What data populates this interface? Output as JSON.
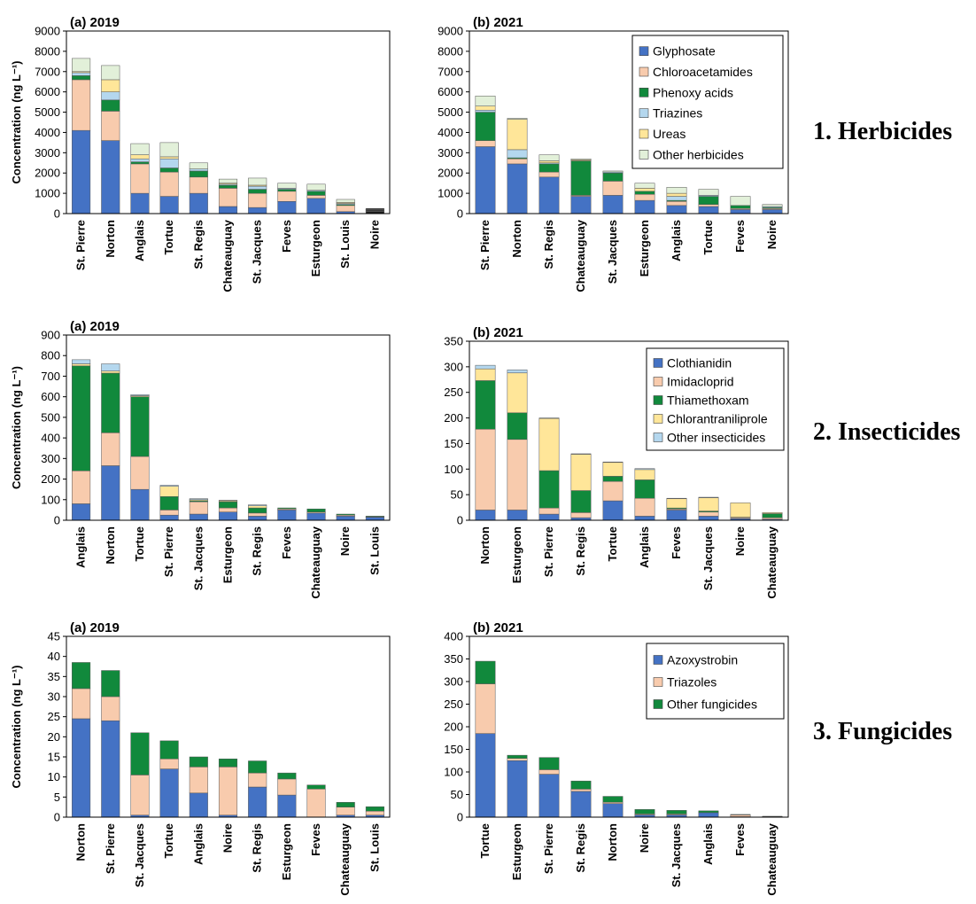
{
  "colors": {
    "blue": "#4472C4",
    "peach": "#F8CBAD",
    "green": "#11893C",
    "lightblue": "#B4D7EE",
    "yellow": "#FFE699",
    "palegreen": "#E2F0D9",
    "dark": "#1F1F1F"
  },
  "row_labels": [
    "1. Herbicides",
    "2. Insecticides",
    "3. Fungicides"
  ],
  "chart_data": [
    {
      "type": "bar",
      "stacked": true,
      "title": "(a) 2019",
      "ylabel": "Concentration (ng L⁻¹)",
      "ylim": [
        0,
        9000
      ],
      "yticks": [
        0,
        1000,
        2000,
        3000,
        4000,
        5000,
        6000,
        7000,
        8000,
        9000
      ],
      "categories": [
        "St. Pierre",
        "Norton",
        "Anglais",
        "Tortue",
        "St. Regis",
        "Chateauguay",
        "St. Jacques",
        "Feves",
        "Esturgeon",
        "St. Louis",
        "Noire"
      ],
      "series": [
        {
          "name": "Glyphosate",
          "color": "blue",
          "values": [
            4100,
            3600,
            1000,
            850,
            1000,
            350,
            300,
            600,
            750,
            100,
            100
          ]
        },
        {
          "name": "Chloroacetamides",
          "color": "peach",
          "values": [
            2500,
            1450,
            1450,
            1200,
            800,
            900,
            700,
            500,
            150,
            300,
            30
          ]
        },
        {
          "name": "Phenoxy acids",
          "color": "green",
          "values": [
            200,
            550,
            100,
            200,
            300,
            150,
            200,
            100,
            200,
            50,
            50
          ]
        },
        {
          "name": "Triazines",
          "color": "lightblue",
          "values": [
            150,
            400,
            150,
            450,
            100,
            50,
            150,
            50,
            50,
            50,
            0
          ]
        },
        {
          "name": "Ureas",
          "color": "yellow",
          "values": [
            50,
            600,
            200,
            100,
            0,
            50,
            50,
            0,
            0,
            50,
            20
          ]
        },
        {
          "name": "Other herbicides",
          "color": "palegreen",
          "values": [
            650,
            700,
            550,
            700,
            300,
            200,
            350,
            250,
            300,
            150,
            50
          ]
        }
      ],
      "highlight": {
        "category": "Noire",
        "color": "dark"
      }
    },
    {
      "type": "bar",
      "stacked": true,
      "title": "(b) 2021",
      "ylim": [
        0,
        9000
      ],
      "yticks": [
        0,
        1000,
        2000,
        3000,
        4000,
        5000,
        6000,
        7000,
        8000,
        9000
      ],
      "categories": [
        "St. Pierre",
        "Norton",
        "St. Regis",
        "Chateauguay",
        "St. Jacques",
        "Esturgeon",
        "Anglais",
        "Tortue",
        "Feves",
        "Noire"
      ],
      "series": [
        {
          "name": "Glyphosate",
          "color": "blue",
          "values": [
            3300,
            2450,
            1800,
            850,
            900,
            650,
            400,
            350,
            200,
            200
          ]
        },
        {
          "name": "Chloroacetamides",
          "color": "peach",
          "values": [
            300,
            250,
            250,
            50,
            700,
            300,
            200,
            100,
            50,
            50
          ]
        },
        {
          "name": "Phenoxy acids",
          "color": "green",
          "values": [
            1400,
            50,
            400,
            1700,
            400,
            150,
            50,
            400,
            150,
            50
          ]
        },
        {
          "name": "Triazines",
          "color": "lightblue",
          "values": [
            100,
            400,
            50,
            0,
            50,
            0,
            200,
            50,
            0,
            50
          ]
        },
        {
          "name": "Ureas",
          "color": "yellow",
          "values": [
            200,
            1500,
            100,
            50,
            0,
            150,
            150,
            0,
            0,
            0
          ]
        },
        {
          "name": "Other herbicides",
          "color": "palegreen",
          "values": [
            500,
            50,
            300,
            50,
            50,
            250,
            300,
            300,
            450,
            100
          ]
        }
      ],
      "legend": {
        "position": "top-right"
      }
    },
    {
      "type": "bar",
      "stacked": true,
      "title": "(a) 2019",
      "ylabel": "Concentration (ng L⁻¹)",
      "ylim": [
        0,
        900
      ],
      "yticks": [
        0,
        100,
        200,
        300,
        400,
        500,
        600,
        700,
        800,
        900
      ],
      "categories": [
        "Anglais",
        "Norton",
        "Tortue",
        "St. Pierre",
        "St. Jacques",
        "Esturgeon",
        "St. Regis",
        "Feves",
        "Chateauguay",
        "Noire",
        "St. Louis"
      ],
      "series": [
        {
          "name": "Clothianidin",
          "color": "blue",
          "values": [
            80,
            265,
            150,
            25,
            30,
            40,
            20,
            50,
            35,
            20,
            15
          ]
        },
        {
          "name": "Imidacloprid",
          "color": "peach",
          "values": [
            160,
            160,
            160,
            25,
            60,
            20,
            15,
            5,
            5,
            5,
            2
          ]
        },
        {
          "name": "Thiamethoxam",
          "color": "green",
          "values": [
            510,
            290,
            290,
            65,
            5,
            30,
            25,
            5,
            15,
            5,
            3
          ]
        },
        {
          "name": "Chlorantraniliprole",
          "color": "yellow",
          "values": [
            10,
            10,
            5,
            50,
            5,
            5,
            10,
            0,
            0,
            0,
            0
          ]
        },
        {
          "name": "Other insecticides",
          "color": "lightblue",
          "values": [
            20,
            35,
            5,
            5,
            5,
            2,
            5,
            0,
            0,
            0,
            0
          ]
        }
      ]
    },
    {
      "type": "bar",
      "stacked": true,
      "title": "(b) 2021",
      "ylim": [
        0,
        350
      ],
      "yticks": [
        0,
        50,
        100,
        150,
        200,
        250,
        300,
        350
      ],
      "categories": [
        "Norton",
        "Esturgeon",
        "St. Pierre",
        "St. Regis",
        "Tortue",
        "Anglais",
        "Feves",
        "St. Jacques",
        "Noire",
        "Chateauguay"
      ],
      "series": [
        {
          "name": "Clothianidin",
          "color": "blue",
          "values": [
            20,
            20,
            12,
            5,
            38,
            8,
            20,
            8,
            3,
            2
          ]
        },
        {
          "name": "Imidacloprid",
          "color": "peach",
          "values": [
            158,
            138,
            12,
            10,
            38,
            35,
            2,
            8,
            2,
            3
          ]
        },
        {
          "name": "Thiamethoxam",
          "color": "green",
          "values": [
            95,
            52,
            73,
            43,
            10,
            36,
            2,
            2,
            1,
            8
          ]
        },
        {
          "name": "Chlorantraniliprole",
          "color": "yellow",
          "values": [
            23,
            78,
            102,
            71,
            27,
            20,
            18,
            26,
            28,
            2
          ]
        },
        {
          "name": "Other insecticides",
          "color": "lightblue",
          "values": [
            7,
            6,
            1,
            1,
            1,
            2,
            1,
            1,
            0,
            0
          ]
        }
      ],
      "legend": {
        "position": "top-right"
      }
    },
    {
      "type": "bar",
      "stacked": true,
      "title": "(a) 2019",
      "ylabel": "Concentration (ng L⁻¹)",
      "ylim": [
        0,
        45
      ],
      "yticks": [
        0,
        5,
        10,
        15,
        20,
        25,
        30,
        35,
        40,
        45
      ],
      "categories": [
        "Norton",
        "St. Pierre",
        "St. Jacques",
        "Tortue",
        "Anglais",
        "Noire",
        "St. Regis",
        "Esturgeon",
        "Feves",
        "Chateauguay",
        "St. Louis"
      ],
      "series": [
        {
          "name": "Azoxystrobin",
          "color": "blue",
          "values": [
            24.5,
            24,
            0.5,
            12,
            6,
            0.5,
            7.5,
            5.5,
            0,
            0.5,
            0.5
          ]
        },
        {
          "name": "Triazoles",
          "color": "peach",
          "values": [
            7.5,
            6,
            10,
            2.5,
            6.5,
            12,
            3.5,
            4,
            7,
            2,
            1
          ]
        },
        {
          "name": "Other fungicides",
          "color": "green",
          "values": [
            6.5,
            6.5,
            10.5,
            4.5,
            2.5,
            2,
            3,
            1.5,
            1,
            1.2,
            1.1
          ]
        }
      ]
    },
    {
      "type": "bar",
      "stacked": true,
      "title": "(b) 2021",
      "ylim": [
        0,
        400
      ],
      "yticks": [
        0,
        50,
        100,
        150,
        200,
        250,
        300,
        350,
        400
      ],
      "categories": [
        "Tortue",
        "Esturgeon",
        "St. Pierre",
        "St. Regis",
        "Norton",
        "Noire",
        "St. Jacques",
        "Anglais",
        "Feves",
        "Chateauguay"
      ],
      "series": [
        {
          "name": "Azoxystrobin",
          "color": "blue",
          "values": [
            185,
            125,
            95,
            57,
            30,
            5,
            5,
            10,
            1,
            1
          ]
        },
        {
          "name": "Triazoles",
          "color": "peach",
          "values": [
            110,
            5,
            10,
            5,
            3,
            2,
            2,
            0,
            4,
            0
          ]
        },
        {
          "name": "Other fungicides",
          "color": "green",
          "values": [
            50,
            7,
            27,
            18,
            13,
            10,
            8,
            4,
            1,
            1
          ]
        }
      ],
      "legend": {
        "position": "top-right"
      }
    }
  ]
}
